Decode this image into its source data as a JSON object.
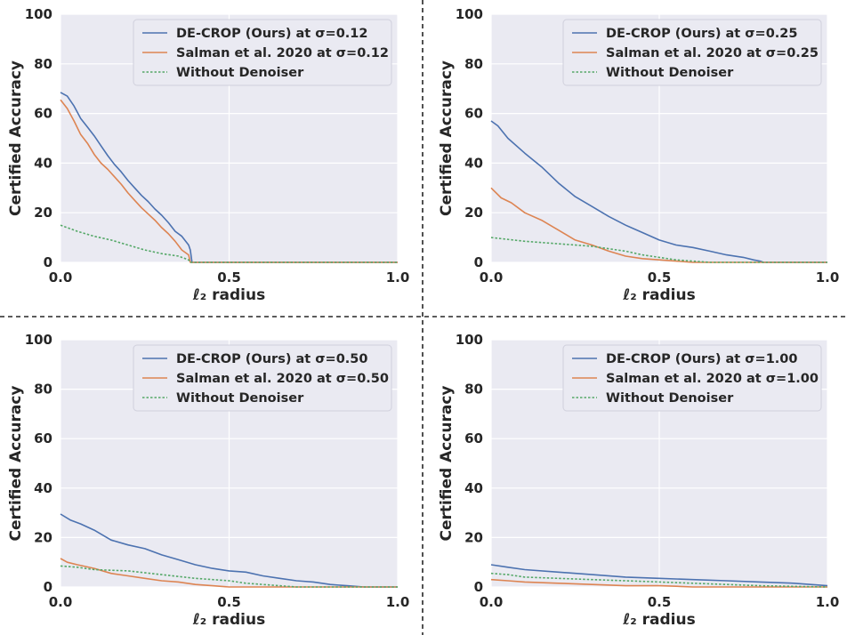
{
  "chart_data": [
    {
      "type": "line",
      "xlabel": "ℓ₂ radius",
      "ylabel": "Certified Accuracy",
      "xlim": [
        0.0,
        1.0
      ],
      "ylim": [
        0,
        100
      ],
      "xticks": [
        "0.0",
        "0.5",
        "1.0"
      ],
      "yticks": [
        "0",
        "20",
        "40",
        "60",
        "80",
        "100"
      ],
      "legend_position": "top-right",
      "series": [
        {
          "name": "DE-CROP (Ours) at σ=0.12",
          "style": "solid",
          "color": "#4c72b0",
          "x": [
            0.0,
            0.02,
            0.04,
            0.06,
            0.08,
            0.1,
            0.12,
            0.14,
            0.16,
            0.18,
            0.2,
            0.22,
            0.24,
            0.26,
            0.28,
            0.3,
            0.32,
            0.34,
            0.36,
            0.38,
            0.385,
            0.39,
            1.0
          ],
          "y": [
            68.5,
            67,
            63,
            58,
            54.5,
            51,
            47,
            43,
            39.5,
            36.5,
            33,
            30,
            27,
            24.5,
            21.5,
            19,
            16,
            12.5,
            10.5,
            7,
            5,
            0,
            0
          ]
        },
        {
          "name": "Salman et al. 2020 at σ=0.12",
          "style": "solid",
          "color": "#dd8452",
          "x": [
            0.0,
            0.02,
            0.04,
            0.06,
            0.08,
            0.1,
            0.12,
            0.14,
            0.16,
            0.18,
            0.2,
            0.22,
            0.24,
            0.26,
            0.28,
            0.3,
            0.32,
            0.34,
            0.36,
            0.38,
            0.385,
            1.0
          ],
          "y": [
            65.5,
            62,
            57,
            51.5,
            48,
            43.5,
            40,
            37.5,
            34.5,
            31.5,
            28,
            25,
            22,
            19.5,
            17,
            14,
            11.5,
            8.5,
            5,
            3,
            0,
            0
          ]
        },
        {
          "name": "Without Denoiser",
          "style": "dotted",
          "color": "#55a868",
          "x": [
            0.0,
            0.05,
            0.1,
            0.15,
            0.2,
            0.25,
            0.3,
            0.35,
            0.38,
            0.385,
            1.0
          ],
          "y": [
            15,
            12.5,
            10.5,
            9,
            7,
            5,
            3.5,
            2.5,
            1,
            0,
            0
          ]
        }
      ]
    },
    {
      "type": "line",
      "xlabel": "ℓ₂ radius",
      "ylabel": "Certified Accuracy",
      "xlim": [
        0.0,
        1.0
      ],
      "ylim": [
        0,
        100
      ],
      "xticks": [
        "0.0",
        "0.5",
        "1.0"
      ],
      "yticks": [
        "0",
        "20",
        "40",
        "60",
        "80",
        "100"
      ],
      "legend_position": "top-right",
      "series": [
        {
          "name": "DE-CROP (Ours) at σ=0.25",
          "style": "solid",
          "color": "#4c72b0",
          "x": [
            0.0,
            0.02,
            0.05,
            0.1,
            0.15,
            0.2,
            0.25,
            0.3,
            0.35,
            0.4,
            0.45,
            0.5,
            0.55,
            0.6,
            0.65,
            0.7,
            0.75,
            0.78,
            0.8,
            0.81,
            1.0
          ],
          "y": [
            57,
            55,
            50,
            44,
            38.5,
            32,
            26.5,
            22.5,
            18.5,
            15,
            12,
            9,
            7,
            6,
            4.5,
            3,
            2,
            1,
            0.5,
            0,
            0
          ]
        },
        {
          "name": "Salman et al. 2020 at σ=0.25",
          "style": "solid",
          "color": "#dd8452",
          "x": [
            0.0,
            0.03,
            0.06,
            0.1,
            0.15,
            0.2,
            0.25,
            0.3,
            0.35,
            0.4,
            0.45,
            0.5,
            0.55,
            0.6,
            1.0
          ],
          "y": [
            30,
            26,
            24,
            20,
            17,
            13,
            9,
            7,
            4.5,
            2.5,
            1.5,
            1,
            0.5,
            0,
            0
          ]
        },
        {
          "name": "Without Denoiser",
          "style": "dotted",
          "color": "#55a868",
          "x": [
            0.0,
            0.1,
            0.2,
            0.3,
            0.35,
            0.4,
            0.45,
            0.5,
            0.55,
            0.6,
            0.65,
            1.0
          ],
          "y": [
            10,
            8.5,
            7.5,
            6.5,
            5.5,
            4.5,
            3,
            2,
            1,
            0.5,
            0,
            0
          ]
        }
      ]
    },
    {
      "type": "line",
      "xlabel": "ℓ₂ radius",
      "ylabel": "Certified Accuracy",
      "xlim": [
        0.0,
        1.0
      ],
      "ylim": [
        0,
        100
      ],
      "xticks": [
        "0.0",
        "0.5",
        "1.0"
      ],
      "yticks": [
        "0",
        "20",
        "40",
        "60",
        "80",
        "100"
      ],
      "legend_position": "top-right",
      "series": [
        {
          "name": "DE-CROP (Ours) at σ=0.50",
          "style": "solid",
          "color": "#4c72b0",
          "x": [
            0.0,
            0.03,
            0.06,
            0.1,
            0.15,
            0.2,
            0.25,
            0.3,
            0.35,
            0.4,
            0.45,
            0.5,
            0.55,
            0.6,
            0.65,
            0.7,
            0.75,
            0.8,
            0.85,
            0.9,
            1.0
          ],
          "y": [
            29.5,
            27,
            25.5,
            23,
            19,
            17,
            15.5,
            13,
            11,
            9,
            7.5,
            6.5,
            6,
            4.5,
            3.5,
            2.5,
            2,
            1,
            0.5,
            0,
            0
          ]
        },
        {
          "name": "Salman et al. 2020 at σ=0.50",
          "style": "solid",
          "color": "#dd8452",
          "x": [
            0.0,
            0.02,
            0.05,
            0.1,
            0.15,
            0.2,
            0.25,
            0.3,
            0.35,
            0.4,
            0.45,
            0.5,
            1.0
          ],
          "y": [
            11.5,
            10,
            9,
            7.5,
            5.5,
            4.5,
            3.5,
            2.5,
            2,
            1,
            0.5,
            0,
            0
          ]
        },
        {
          "name": "Without Denoiser",
          "style": "dotted",
          "color": "#55a868",
          "x": [
            0.0,
            0.05,
            0.1,
            0.2,
            0.3,
            0.4,
            0.5,
            0.55,
            0.6,
            0.65,
            0.7,
            1.0
          ],
          "y": [
            8.5,
            8,
            7,
            6.5,
            5,
            3.5,
            2.5,
            1.5,
            1,
            0.5,
            0,
            0
          ]
        }
      ]
    },
    {
      "type": "line",
      "xlabel": "ℓ₂ radius",
      "ylabel": "Certified Accuracy",
      "xlim": [
        0.0,
        1.0
      ],
      "ylim": [
        0,
        100
      ],
      "xticks": [
        "0.0",
        "0.5",
        "1.0"
      ],
      "yticks": [
        "0",
        "20",
        "40",
        "60",
        "80",
        "100"
      ],
      "legend_position": "top-right",
      "series": [
        {
          "name": "DE-CROP (Ours) at σ=1.00",
          "style": "solid",
          "color": "#4c72b0",
          "x": [
            0.0,
            0.05,
            0.1,
            0.2,
            0.3,
            0.4,
            0.5,
            0.6,
            0.7,
            0.8,
            0.9,
            0.95,
            1.0
          ],
          "y": [
            9,
            8,
            7,
            6,
            5,
            4,
            3.5,
            3,
            2.5,
            2,
            1.5,
            1,
            0.5
          ]
        },
        {
          "name": "Salman et al. 2020 at σ=1.00",
          "style": "solid",
          "color": "#dd8452",
          "x": [
            0.0,
            0.05,
            0.1,
            0.2,
            0.3,
            0.4,
            0.5,
            0.55,
            0.6,
            1.0
          ],
          "y": [
            3,
            2.5,
            2,
            1.5,
            1,
            0.5,
            0.5,
            0.3,
            0,
            0
          ]
        },
        {
          "name": "Without Denoiser",
          "style": "dotted",
          "color": "#55a868",
          "x": [
            0.0,
            0.05,
            0.1,
            0.2,
            0.3,
            0.4,
            0.5,
            0.6,
            0.7,
            0.8,
            1.0
          ],
          "y": [
            5.5,
            5,
            4,
            3.5,
            3,
            2.5,
            2,
            1.5,
            1,
            0.5,
            0
          ]
        }
      ]
    }
  ]
}
